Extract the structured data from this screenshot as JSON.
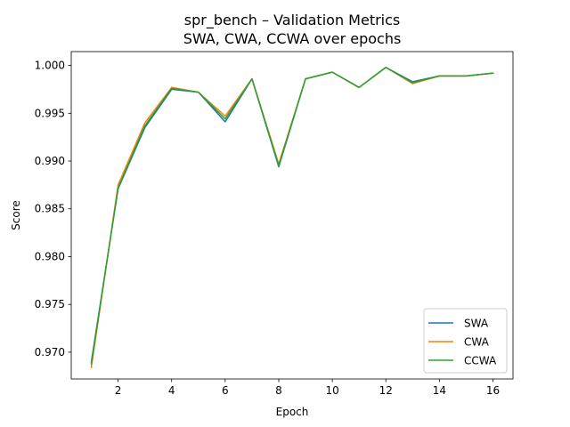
{
  "chart_data": {
    "type": "line",
    "title_line1": "spr_bench – Validation Metrics",
    "title_line2": "SWA, CWA, CCWA over epochs",
    "xlabel": "Epoch",
    "ylabel": "Score",
    "xlim": [
      0.25,
      16.75
    ],
    "ylim": [
      0.9672,
      1.00145
    ],
    "xticks": [
      2,
      4,
      6,
      8,
      10,
      12,
      14,
      16
    ],
    "yticks": [
      0.97,
      0.975,
      0.98,
      0.985,
      0.99,
      0.995,
      1.0
    ],
    "ytick_labels": [
      "0.970",
      "0.975",
      "0.980",
      "0.985",
      "0.990",
      "0.995",
      "1.000"
    ],
    "grid": false,
    "legend_position": "lower-right",
    "x": [
      1,
      2,
      3,
      4,
      5,
      6,
      7,
      8,
      9,
      10,
      11,
      12,
      13,
      14,
      15,
      16
    ],
    "series": [
      {
        "name": "SWA",
        "color": "#1f77b4",
        "values": [
          0.969,
          0.9871,
          0.9935,
          0.9975,
          0.9972,
          0.9941,
          0.9986,
          0.9894,
          0.9986,
          0.9993,
          0.9977,
          0.9998,
          0.9983,
          0.9989,
          0.9989,
          0.9992
        ]
      },
      {
        "name": "CWA",
        "color": "#ff7f0e",
        "values": [
          0.9684,
          0.9875,
          0.994,
          0.9977,
          0.9972,
          0.9947,
          0.9986,
          0.9897,
          0.9986,
          0.9993,
          0.9977,
          0.9998,
          0.9981,
          0.9989,
          0.9989,
          0.9992
        ]
      },
      {
        "name": "CCWA",
        "color": "#2ca02c",
        "values": [
          0.9688,
          0.9872,
          0.9937,
          0.9976,
          0.9972,
          0.9944,
          0.9986,
          0.9895,
          0.9986,
          0.9993,
          0.9977,
          0.9998,
          0.9982,
          0.9989,
          0.9989,
          0.9992
        ]
      }
    ]
  }
}
